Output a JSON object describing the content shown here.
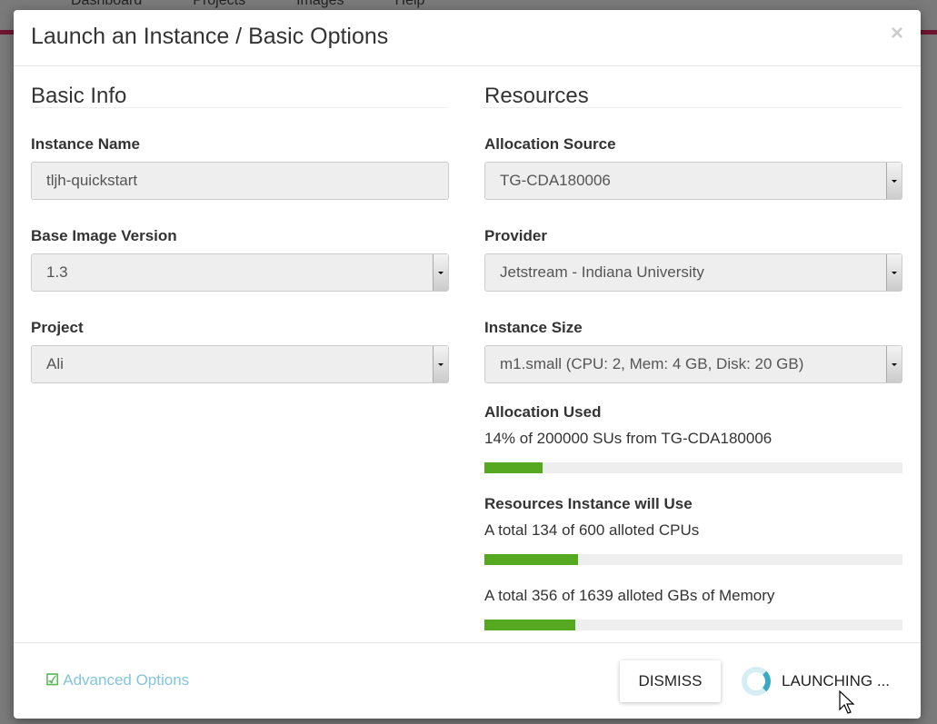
{
  "background": {
    "nav": [
      "Dashboard",
      "Projects",
      "Images",
      "Help"
    ]
  },
  "modal": {
    "title": "Launch an Instance / Basic Options",
    "close": "×"
  },
  "basic_info": {
    "heading": "Basic Info",
    "instance_name_label": "Instance Name",
    "instance_name_value": "tljh-quickstart",
    "base_image_label": "Base Image Version",
    "base_image_value": "1.3",
    "project_label": "Project",
    "project_value": "Ali"
  },
  "resources": {
    "heading": "Resources",
    "allocation_source_label": "Allocation Source",
    "allocation_source_value": "TG-CDA180006",
    "provider_label": "Provider",
    "provider_value": "Jetstream - Indiana University",
    "instance_size_label": "Instance Size",
    "instance_size_value": "m1.small (CPU: 2, Mem: 4 GB, Disk: 20 GB)",
    "allocation_used_label": "Allocation Used",
    "allocation_used_text": "14% of 200000 SUs from TG-CDA180006",
    "allocation_used_percent": 14,
    "will_use_label": "Resources Instance will Use",
    "cpu_text": "A total 134 of 600 alloted CPUs",
    "cpu_percent": 22.3,
    "mem_text": "A total 356 of 1639 alloted GBs of Memory",
    "mem_percent": 21.7,
    "bar_color": "#56a821"
  },
  "footer": {
    "advanced_options": "Advanced Options",
    "dismiss": "DISMISS",
    "launching": "LAUNCHING ..."
  }
}
